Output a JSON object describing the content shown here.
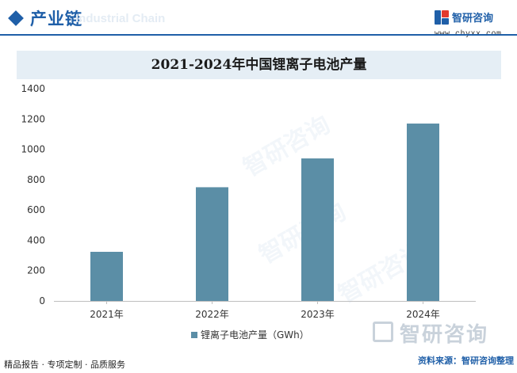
{
  "header": {
    "title": "产业链",
    "ghost_text": "Industrial Chain"
  },
  "brand": {
    "name": "智研咨询",
    "url": "www.chyxx.com",
    "color_primary": "#1f5fa8",
    "color_accent": "#e23a2e"
  },
  "chart_data": {
    "type": "bar",
    "title": "2021-2024年中国锂离子电池产量",
    "categories": [
      "2021年",
      "2022年",
      "2023年",
      "2024年"
    ],
    "series": [
      {
        "name": "锂离子电池产量（GWh）",
        "values": [
          324,
          750,
          940,
          1170
        ],
        "color": "#5b8ea6"
      }
    ],
    "xlabel": "",
    "ylabel": "",
    "ylim": [
      0,
      1400
    ],
    "yticks": [
      0,
      200,
      400,
      600,
      800,
      1000,
      1200,
      1400
    ],
    "grid": false,
    "legend_position": "bottom"
  },
  "watermark": {
    "text": "智研咨询"
  },
  "footer": {
    "left": "精品报告 · 专项定制 · 品质服务",
    "source": "资料来源：智研咨询整理"
  }
}
